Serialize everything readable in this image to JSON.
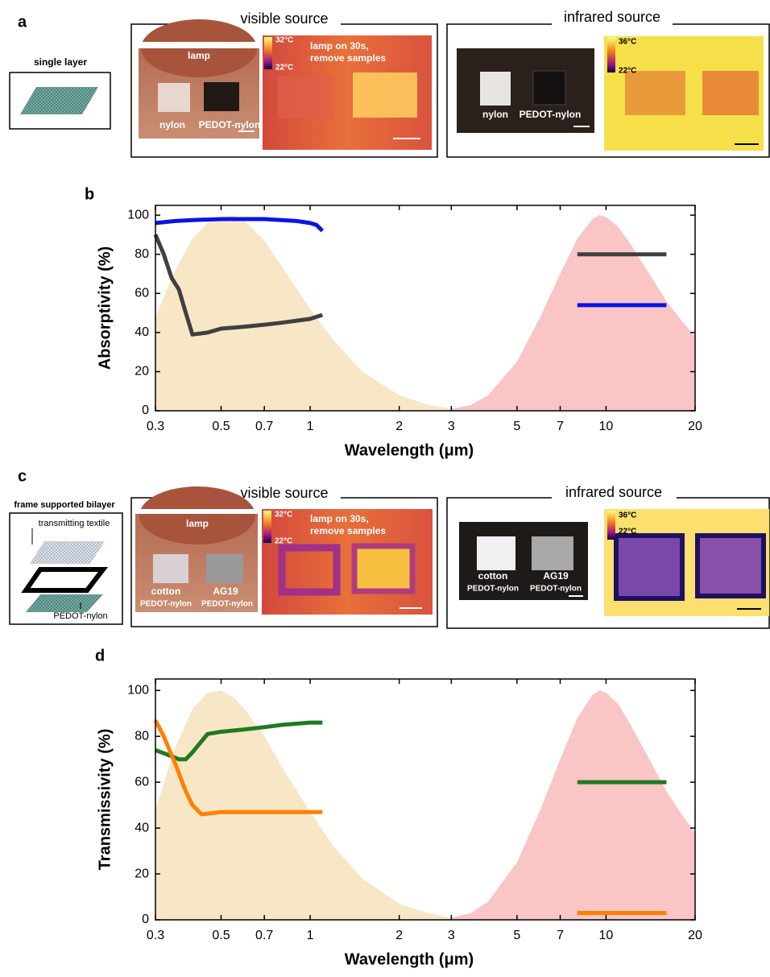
{
  "panels": {
    "a": {
      "label": "a",
      "single_layer": "single layer",
      "visible": {
        "title": "visible source",
        "lamp": "lamp",
        "samples": [
          "nylon",
          "PEDOT-nylon"
        ],
        "scale_max": "32°C",
        "scale_min": "22°C",
        "note": [
          "lamp on 30s,",
          "remove samples"
        ]
      },
      "infrared": {
        "title": "infrared source",
        "samples": [
          "nylon",
          "PEDOT-nylon"
        ],
        "scale_max": "36°C",
        "scale_min": "22°C"
      }
    },
    "c": {
      "label": "c",
      "bilayer": "frame supported bilayer",
      "top_layer": "transmitting textile",
      "bottom_layer": "PEDOT-nylon",
      "visible": {
        "title": "visible source",
        "lamp": "lamp",
        "samples": [
          [
            "cotton",
            "PEDOT-nylon"
          ],
          [
            "AG19",
            "PEDOT-nylon"
          ]
        ],
        "scale_max": "32°C",
        "scale_min": "22°C",
        "note": [
          "lamp on 30s,",
          "remove samples"
        ]
      },
      "infrared": {
        "title": "infrared source",
        "samples": [
          [
            "cotton",
            "PEDOT-nylon"
          ],
          [
            "AG19",
            "PEDOT-nylon"
          ]
        ],
        "scale_max": "36°C",
        "scale_min": "22°C"
      }
    }
  },
  "chart_data": [
    {
      "type": "line",
      "label": "b",
      "x_label": "Wavelength (μm)",
      "y_label": "Absorptivity (%)",
      "xscale": "log",
      "xlim": [
        0.3,
        20
      ],
      "ylim": [
        0,
        105
      ],
      "xticks": [
        0.3,
        0.5,
        0.7,
        1,
        2,
        3,
        5,
        7,
        10,
        20
      ],
      "yticks": [
        0,
        20,
        40,
        60,
        80,
        100
      ],
      "series": [
        {
          "kind": "area",
          "color": "#f7e7c6",
          "x": [
            0.3,
            0.35,
            0.4,
            0.45,
            0.5,
            0.55,
            0.6,
            0.7,
            0.8,
            1,
            1.2,
            1.5,
            2,
            2.5,
            3
          ],
          "values": [
            48,
            72,
            88,
            96,
            99,
            100,
            97,
            87,
            74,
            52,
            36,
            20,
            8,
            3,
            1
          ]
        },
        {
          "kind": "area",
          "color": "#f9c5c5",
          "x": [
            3,
            3.5,
            4,
            5,
            6,
            7,
            8,
            9,
            9.5,
            10,
            11,
            12,
            14,
            16,
            18,
            20
          ],
          "values": [
            1,
            3,
            8,
            25,
            48,
            70,
            88,
            98,
            100,
            99,
            94,
            86,
            70,
            56,
            46,
            38
          ]
        },
        {
          "kind": "line",
          "color": "#0a14e6",
          "x": [
            0.3,
            0.35,
            0.4,
            0.5,
            0.6,
            0.7,
            0.8,
            0.9,
            1.0,
            1.05,
            1.1
          ],
          "values": [
            96,
            97,
            97.5,
            98,
            98,
            98,
            97.5,
            97,
            96,
            95,
            92
          ]
        },
        {
          "kind": "line",
          "color": "#404040",
          "x": [
            0.3,
            0.32,
            0.34,
            0.36,
            0.38,
            0.4,
            0.45,
            0.5,
            0.6,
            0.7,
            0.8,
            1.0,
            1.1
          ],
          "values": [
            90,
            80,
            68,
            62,
            50,
            39,
            40,
            42,
            43,
            44,
            45,
            47,
            49
          ]
        },
        {
          "kind": "line",
          "color": "#404040",
          "x": [
            8,
            16
          ],
          "values": [
            80,
            80
          ]
        },
        {
          "kind": "line",
          "color": "#0a14e6",
          "x": [
            8,
            16
          ],
          "values": [
            54,
            54
          ]
        }
      ]
    },
    {
      "type": "line",
      "label": "d",
      "x_label": "Wavelength (μm)",
      "y_label": "Transmissivity (%)",
      "xscale": "log",
      "xlim": [
        0.3,
        20
      ],
      "ylim": [
        0,
        105
      ],
      "xticks": [
        0.3,
        0.5,
        0.7,
        1,
        2,
        3,
        5,
        7,
        10,
        20
      ],
      "yticks": [
        0,
        20,
        40,
        60,
        80,
        100
      ],
      "series": [
        {
          "kind": "area",
          "color": "#f7e7c6",
          "x": [
            0.3,
            0.35,
            0.4,
            0.45,
            0.5,
            0.55,
            0.6,
            0.7,
            0.8,
            1,
            1.2,
            1.5,
            2,
            2.5,
            3
          ],
          "values": [
            48,
            75,
            92,
            99,
            100,
            97,
            92,
            80,
            67,
            47,
            32,
            18,
            7,
            3,
            1
          ]
        },
        {
          "kind": "area",
          "color": "#f9c5c5",
          "x": [
            3,
            3.5,
            4,
            5,
            6,
            7,
            8,
            9,
            9.5,
            10,
            11,
            12,
            14,
            16,
            18,
            20
          ],
          "values": [
            1,
            3,
            8,
            25,
            48,
            70,
            88,
            98,
            100,
            99,
            94,
            86,
            70,
            56,
            46,
            38
          ]
        },
        {
          "kind": "line",
          "color": "#1f7a1f",
          "x": [
            0.3,
            0.33,
            0.36,
            0.38,
            0.4,
            0.45,
            0.5,
            0.6,
            0.7,
            0.8,
            1.0,
            1.1
          ],
          "values": [
            74,
            72,
            70,
            70,
            73,
            81,
            82,
            83,
            84,
            85,
            86,
            86
          ]
        },
        {
          "kind": "line",
          "color": "#ff8000",
          "x": [
            0.3,
            0.32,
            0.35,
            0.38,
            0.4,
            0.43,
            0.5,
            0.7,
            1.0,
            1.1
          ],
          "values": [
            87,
            80,
            68,
            56,
            50,
            46,
            47,
            47,
            47,
            47
          ]
        },
        {
          "kind": "line",
          "color": "#1f7a1f",
          "x": [
            8,
            16
          ],
          "values": [
            60,
            60
          ]
        },
        {
          "kind": "line",
          "color": "#ff8000",
          "x": [
            8,
            16
          ],
          "values": [
            3,
            3
          ]
        }
      ]
    }
  ]
}
